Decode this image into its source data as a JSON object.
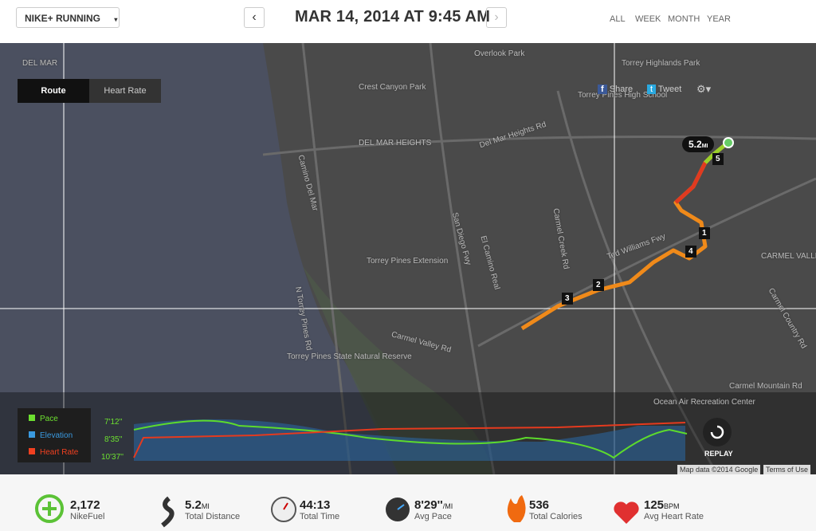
{
  "header": {
    "app": "NIKE+ RUNNING",
    "date": "MAR 14, 2014 AT 9:45 AM",
    "filters": [
      "ALL",
      "WEEK",
      "MONTH",
      "YEAR"
    ]
  },
  "map": {
    "tabs": [
      "Route",
      "Heart Rate"
    ],
    "share": "Share",
    "tweet": "Tweet",
    "distance_flag": "5.2",
    "distance_unit": "MI",
    "markers": [
      "1",
      "2",
      "3",
      "4",
      "5"
    ],
    "labels": [
      "DEL MAR",
      "Crest Canyon Park",
      "Overlook Park",
      "Torrey Highlands Park",
      "Torrey Pines High School",
      "DEL MAR HEIGHTS",
      "Del Mar Heights Rd",
      "Camino Del Mar",
      "Torrey Pines Extension",
      "San Diego Fwy",
      "El Camino Real",
      "Carmel Creek Rd",
      "Ted Williams Fwy",
      "Carmel Valley Rd",
      "Torrey Pines State Natural Reserve",
      "N Torrey Pines Rd",
      "CARMEL VALLEY",
      "Carmel Country Rd",
      "Carmel Mountain Rd",
      "Ocean Air Recreation Center"
    ],
    "attribution": "Map data ©2014 Google",
    "terms": "Terms of Use"
  },
  "graph": {
    "legend": [
      "Pace",
      "Elevation",
      "Heart Rate"
    ],
    "axis": [
      "7'12''",
      "8'35''",
      "10'37''"
    ],
    "replay": "REPLAY"
  },
  "stats": [
    {
      "value": "2,172",
      "label": "NikeFuel"
    },
    {
      "value": "5.2",
      "unit": "MI",
      "label": "Total Distance"
    },
    {
      "value": "44:13",
      "label": "Total Time"
    },
    {
      "value": "8'29''",
      "unit": "/MI",
      "label": "Avg Pace"
    },
    {
      "value": "536",
      "label": "Total Calories"
    },
    {
      "value": "125",
      "unit": "BPM",
      "label": "Avg Heart Rate"
    }
  ]
}
